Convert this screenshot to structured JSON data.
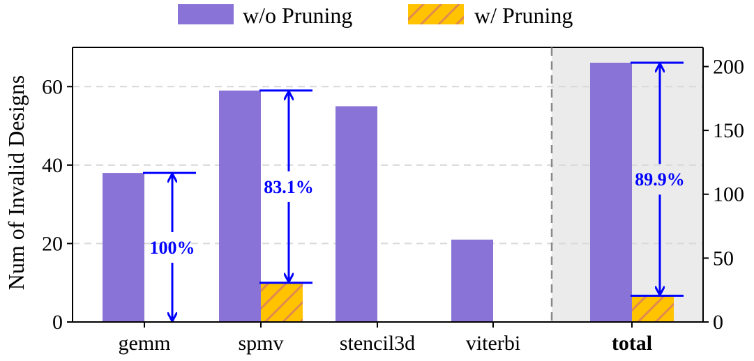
{
  "chart_data": {
    "type": "bar",
    "title": "",
    "xlabel": "",
    "ylabel": "Num of Invalid Designs",
    "ylim": [
      0,
      70
    ],
    "yticks": [
      0,
      20,
      40,
      60
    ],
    "y2lim": [
      0,
      215
    ],
    "y2ticks": [
      0,
      50,
      100,
      150,
      200
    ],
    "grid": "horizontal dashed",
    "legend_position": "top-center",
    "categories": [
      "gemm",
      "spmv",
      "stencil3d",
      "viterbi",
      "total"
    ],
    "highlighted_category": "total",
    "series": [
      {
        "name": "w/o Pruning",
        "values": [
          38,
          59,
          55,
          21,
          203
        ],
        "color": "#8a73d6"
      },
      {
        "name": "w/ Pruning",
        "values": [
          0,
          10,
          0,
          0,
          20.5
        ],
        "color": "#ffc300",
        "hatch": "#e08a50"
      }
    ],
    "annotations": [
      {
        "category": "gemm",
        "text": "100%"
      },
      {
        "category": "spmv",
        "text": "83.1%"
      },
      {
        "category": "total",
        "text": "89.9%"
      }
    ],
    "colors": {
      "annotation": "#0000ff",
      "highlight_background": "#ebebeb",
      "grid": "#d9d9d9"
    }
  }
}
